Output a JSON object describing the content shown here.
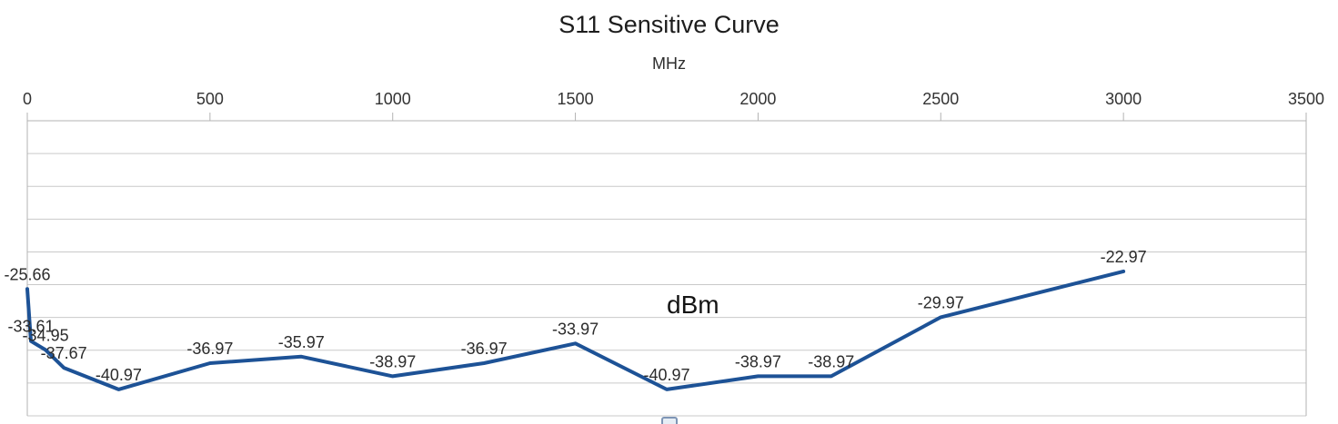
{
  "chart_data": {
    "type": "line",
    "title": "S11 Sensitive Curve",
    "x_axis_label": "MHz",
    "y_axis_annotation": "dBm",
    "x_ticks": [
      "0",
      "500",
      "1000",
      "1500",
      "2000",
      "2500",
      "3000",
      "3500"
    ],
    "x_tick_values": [
      0,
      500,
      1000,
      1500,
      2000,
      2500,
      3000,
      3500
    ],
    "xlim": [
      0,
      3500
    ],
    "ylim": [
      -45,
      0
    ],
    "y_gridline_step": 5,
    "grid": "horizontal gridlines every 5 dB, no y-axis tick labels visible",
    "legend_position": "none",
    "series": [
      {
        "x": [
          0,
          10,
          50,
          100,
          250,
          500,
          750,
          1000,
          1250,
          1500,
          1750,
          2000,
          2200,
          2500,
          3000
        ],
        "values": [
          -25.66,
          -33.61,
          -34.95,
          -37.67,
          -40.97,
          -36.97,
          -35.97,
          -38.97,
          -36.97,
          -33.97,
          -40.97,
          -38.97,
          -38.97,
          -29.97,
          -22.97
        ],
        "labels": [
          "-25.66",
          "-33.61",
          "-34.95",
          "-37.67",
          "-40.97",
          "-36.97",
          "-35.97",
          "-38.97",
          "-36.97",
          "-33.97",
          "-40.97",
          "-38.97",
          "-38.97",
          "-29.97",
          "-22.97"
        ]
      }
    ],
    "colors": {
      "line": "#1d5296",
      "gridline": "#c9c9c9",
      "axis": "#b3b3b3",
      "title_text": "#1d1d1d",
      "tick_text": "#333333",
      "data_label_text": "#2b2b2b",
      "annotation_text": "#141414"
    }
  }
}
